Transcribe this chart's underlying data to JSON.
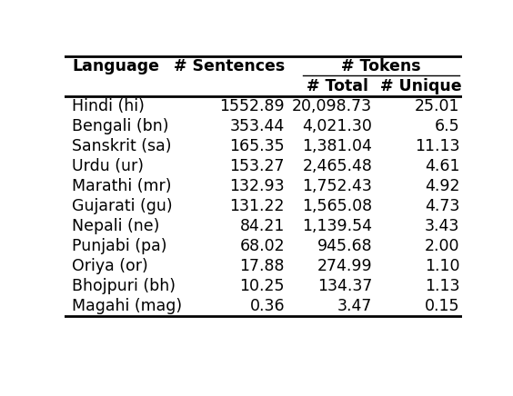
{
  "col_headers_row0": [
    "Language",
    "# Sentences",
    "# Tokens"
  ],
  "col_headers_row1": [
    "# Total",
    "# Unique"
  ],
  "rows": [
    [
      "Hindi (hi)",
      "1552.89",
      "20,098.73",
      "25.01"
    ],
    [
      "Bengali (bn)",
      "353.44",
      "4,021.30",
      "6.5"
    ],
    [
      "Sanskrit (sa)",
      "165.35",
      "1,381.04",
      "11.13"
    ],
    [
      "Urdu (ur)",
      "153.27",
      "2,465.48",
      "4.61"
    ],
    [
      "Marathi (mr)",
      "132.93",
      "1,752.43",
      "4.92"
    ],
    [
      "Gujarati (gu)",
      "131.22",
      "1,565.08",
      "4.73"
    ],
    [
      "Nepali (ne)",
      "84.21",
      "1,139.54",
      "3.43"
    ],
    [
      "Punjabi (pa)",
      "68.02",
      "945.68",
      "2.00"
    ],
    [
      "Oriya (or)",
      "17.88",
      "274.99",
      "1.10"
    ],
    [
      "Bhojpuri (bh)",
      "10.25",
      "134.37",
      "1.13"
    ],
    [
      "Magahi (mag)",
      "0.36",
      "3.47",
      "0.15"
    ]
  ],
  "col_aligns": [
    "left",
    "right",
    "right",
    "right"
  ],
  "bg_color": "#ffffff",
  "text_color": "#000000",
  "header_fontsize": 12.5,
  "body_fontsize": 12.5
}
